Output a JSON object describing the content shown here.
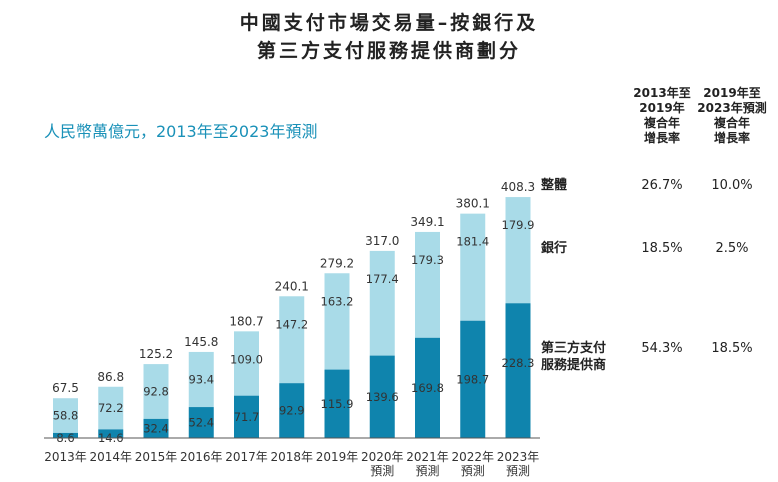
{
  "title": {
    "line1": "中國支付市場交易量–按銀行及",
    "line2": "第三方支付服務提供商劃分"
  },
  "subtitle": "人民幣萬億元，2013年至2023年預測",
  "table": {
    "headers": [
      [
        "2013年至",
        "2019年",
        "複合年",
        "增長率"
      ],
      [
        "2019年至",
        "2023年預測",
        "複合年",
        "增長率"
      ]
    ],
    "rows": [
      {
        "label": [
          "整體"
        ],
        "cagr1": "26.7%",
        "cagr2": "10.0%"
      },
      {
        "label": [
          "銀行"
        ],
        "cagr1": "18.5%",
        "cagr2": "2.5%"
      },
      {
        "label": [
          "第三方支付",
          "服務提供商"
        ],
        "cagr1": "54.3%",
        "cagr2": "18.5%"
      }
    ]
  },
  "colors": {
    "bank": "#a9dbe8",
    "third_party": "#0f84ad"
  },
  "chart_data": {
    "type": "bar",
    "stacked": true,
    "categories": [
      [
        "2013年"
      ],
      [
        "2014年"
      ],
      [
        "2015年"
      ],
      [
        "2016年"
      ],
      [
        "2017年"
      ],
      [
        "2018年"
      ],
      [
        "2019年"
      ],
      [
        "2020年",
        "預測"
      ],
      [
        "2021年",
        "預測"
      ],
      [
        "2022年",
        "預測"
      ],
      [
        "2023年",
        "預測"
      ]
    ],
    "series": [
      {
        "name": "第三方支付服務提供商",
        "values": [
          8.6,
          14.6,
          32.4,
          52.4,
          71.7,
          92.9,
          115.9,
          139.6,
          169.8,
          198.7,
          228.3
        ]
      },
      {
        "name": "銀行",
        "values": [
          58.8,
          72.2,
          92.8,
          93.4,
          109.0,
          147.2,
          163.2,
          177.4,
          179.3,
          181.4,
          179.9
        ]
      }
    ],
    "totals": [
      67.5,
      86.8,
      125.2,
      145.8,
      180.7,
      240.1,
      279.2,
      317.0,
      349.1,
      380.1,
      408.3
    ],
    "value_labels": {
      "third": [
        "8.6",
        "14.6",
        "32.4",
        "52.4",
        "71.7",
        "92.9",
        "115.9",
        "139.6",
        "169.8",
        "198.7",
        "228.3"
      ],
      "bank": [
        "58.8",
        "72.2",
        "92.8",
        "93.4",
        "109.0",
        "147.2",
        "163.2",
        "177.4",
        "179.3",
        "181.4",
        "179.9"
      ],
      "total": [
        "67.5",
        "86.8",
        "125.2",
        "145.8",
        "180.7",
        "240.1",
        "279.2",
        "317.0",
        "349.1",
        "380.1",
        "408.3"
      ]
    },
    "ylim": [
      0,
      408.3
    ],
    "xlabel": "",
    "ylabel": ""
  }
}
